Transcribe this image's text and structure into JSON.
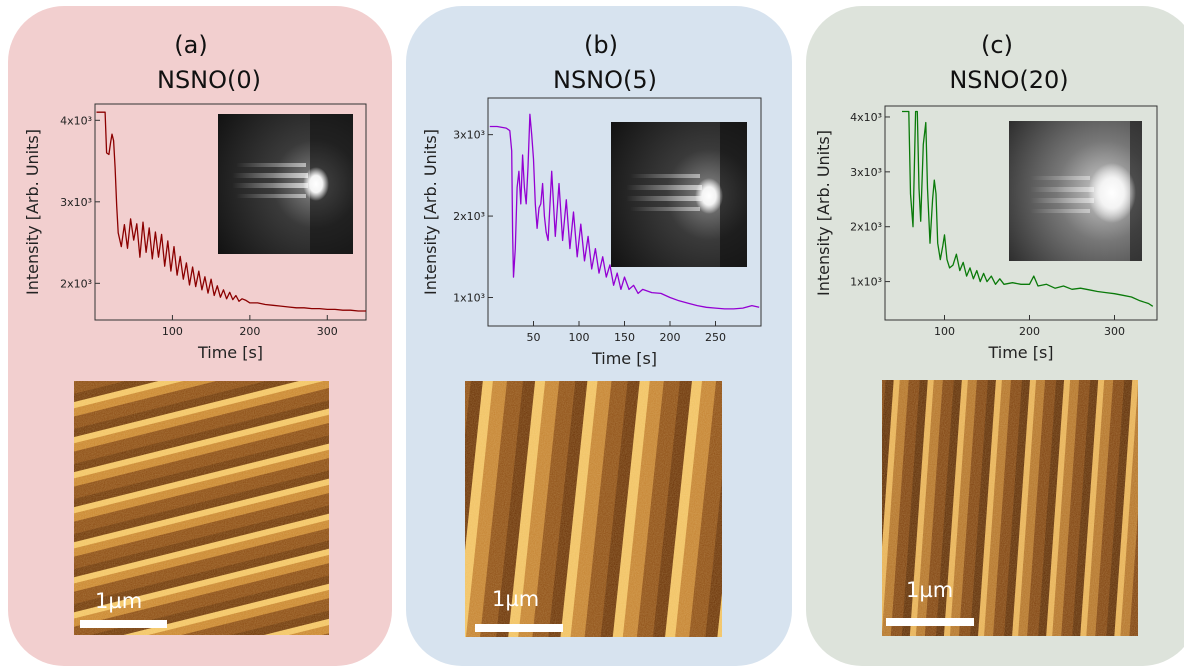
{
  "panels": [
    {
      "tag": "(a)",
      "title": "NSNO(0)",
      "bg_color": "#f2cfcf",
      "line_color": "#8b0000",
      "scalebar_label": "1µm",
      "afm_stripe_direction": "diagonal",
      "rheed_spot_intensity": "medium"
    },
    {
      "tag": "(b)",
      "title": "NSNO(5)",
      "bg_color": "#d7e3ef",
      "line_color": "#9400d3",
      "scalebar_label": "1µm",
      "afm_stripe_direction": "vertical",
      "rheed_spot_intensity": "medium"
    },
    {
      "tag": "(c)",
      "title": "NSNO(20)",
      "bg_color": "#dde3db",
      "line_color": "#0a7a0a",
      "scalebar_label": "1µm",
      "afm_stripe_direction": "vertical",
      "rheed_spot_intensity": "bright"
    }
  ],
  "chart_data": [
    {
      "type": "line",
      "title": "NSNO(0)",
      "xlabel": "Time [s]",
      "ylabel": "Intensity [Arb. Units]",
      "xlim": [
        0,
        350
      ],
      "ylim": [
        1550,
        4200
      ],
      "xticks": [
        100,
        200,
        300
      ],
      "xtick_labels": [
        "100",
        "200",
        "300"
      ],
      "yticks": [
        2000,
        3000,
        4000
      ],
      "ytick_labels": [
        "2x10³",
        "3x10³",
        "4x10³"
      ],
      "grid": false,
      "series": [
        {
          "color": "#8b0000",
          "x": [
            2,
            10,
            13,
            15,
            18,
            20,
            22,
            24,
            26,
            28,
            30,
            34,
            38,
            42,
            46,
            50,
            54,
            58,
            62,
            66,
            70,
            74,
            78,
            82,
            86,
            90,
            94,
            98,
            102,
            106,
            110,
            114,
            118,
            122,
            126,
            130,
            134,
            138,
            142,
            146,
            150,
            154,
            158,
            162,
            166,
            170,
            174,
            178,
            182,
            186,
            190,
            195,
            200,
            210,
            220,
            230,
            240,
            250,
            260,
            270,
            280,
            290,
            300,
            310,
            320,
            330,
            340,
            350
          ],
          "y": [
            4100,
            4100,
            4100,
            3600,
            3580,
            3720,
            3830,
            3750,
            3420,
            2950,
            2620,
            2450,
            2720,
            2430,
            2790,
            2530,
            2730,
            2320,
            2750,
            2380,
            2680,
            2300,
            2630,
            2320,
            2600,
            2210,
            2520,
            2150,
            2450,
            2100,
            2330,
            2050,
            2250,
            1980,
            2200,
            1960,
            2150,
            1920,
            2080,
            1880,
            2050,
            1850,
            1970,
            1830,
            1920,
            1810,
            1890,
            1800,
            1850,
            1780,
            1810,
            1790,
            1760,
            1760,
            1740,
            1730,
            1720,
            1710,
            1700,
            1700,
            1690,
            1690,
            1680,
            1680,
            1670,
            1670,
            1660,
            1660
          ]
        }
      ]
    },
    {
      "type": "line",
      "title": "NSNO(5)",
      "xlabel": "Time [s]",
      "ylabel": "Intensity [Arb. Units]",
      "xlim": [
        0,
        300
      ],
      "ylim": [
        650,
        3450
      ],
      "xticks": [
        50,
        100,
        150,
        200,
        250
      ],
      "xtick_labels": [
        "50",
        "100",
        "150",
        "200",
        "250"
      ],
      "yticks": [
        1000,
        2000,
        3000
      ],
      "ytick_labels": [
        "1x10³",
        "2x10³",
        "3x10³"
      ],
      "grid": false,
      "series": [
        {
          "color": "#9400d3",
          "x": [
            2,
            10,
            20,
            24,
            26,
            27,
            28,
            30,
            32,
            34,
            36,
            38,
            40,
            42,
            44,
            46,
            48,
            50,
            52,
            54,
            56,
            58,
            60,
            62,
            64,
            66,
            70,
            74,
            78,
            82,
            86,
            90,
            94,
            98,
            102,
            106,
            110,
            114,
            118,
            122,
            126,
            130,
            134,
            138,
            142,
            146,
            150,
            155,
            160,
            165,
            170,
            180,
            190,
            200,
            210,
            220,
            230,
            240,
            250,
            260,
            270,
            280,
            290,
            298
          ],
          "y": [
            3100,
            3100,
            3080,
            3050,
            2800,
            1800,
            1250,
            1600,
            2350,
            2550,
            2150,
            2750,
            2350,
            2150,
            2600,
            3250,
            3000,
            2700,
            2150,
            1850,
            2100,
            2150,
            2400,
            2000,
            1800,
            1700,
            2550,
            1750,
            2400,
            1700,
            2200,
            1600,
            2050,
            1500,
            1900,
            1450,
            1750,
            1350,
            1600,
            1300,
            1500,
            1250,
            1400,
            1150,
            1300,
            1100,
            1250,
            1100,
            1150,
            1050,
            1100,
            1060,
            1050,
            1000,
            960,
            930,
            900,
            880,
            870,
            860,
            860,
            870,
            900,
            880
          ]
        }
      ]
    },
    {
      "type": "line",
      "title": "NSNO(20)",
      "xlabel": "Time [s]",
      "ylabel": "Intensity [Arb. Units]",
      "xlim": [
        30,
        350
      ],
      "ylim": [
        300,
        4200
      ],
      "xticks": [
        100,
        200,
        300
      ],
      "xtick_labels": [
        "100",
        "200",
        "300"
      ],
      "yticks": [
        1000,
        2000,
        3000,
        4000
      ],
      "ytick_labels": [
        "1x10³",
        "2x10³",
        "3x10³",
        "4x10³"
      ],
      "grid": false,
      "series": [
        {
          "color": "#0a7a0a",
          "x": [
            50,
            58,
            60,
            63,
            66,
            68,
            70,
            72,
            75,
            78,
            80,
            83,
            86,
            88,
            90,
            92,
            95,
            98,
            100,
            103,
            106,
            110,
            114,
            118,
            122,
            126,
            130,
            134,
            138,
            142,
            146,
            150,
            155,
            160,
            165,
            170,
            180,
            190,
            200,
            205,
            210,
            220,
            230,
            240,
            250,
            260,
            270,
            280,
            290,
            300,
            310,
            320,
            330,
            340,
            345
          ],
          "y": [
            4100,
            4100,
            2600,
            2000,
            4100,
            4100,
            2700,
            2100,
            3500,
            3900,
            2700,
            1700,
            2500,
            2850,
            2600,
            1700,
            1400,
            1650,
            1850,
            1400,
            1250,
            1300,
            1500,
            1200,
            1350,
            1100,
            1250,
            1050,
            1200,
            1000,
            1150,
            1000,
            1100,
            950,
            1050,
            950,
            980,
            950,
            950,
            1100,
            920,
            950,
            880,
            920,
            860,
            880,
            850,
            820,
            800,
            780,
            750,
            720,
            650,
            600,
            550
          ]
        }
      ]
    }
  ]
}
